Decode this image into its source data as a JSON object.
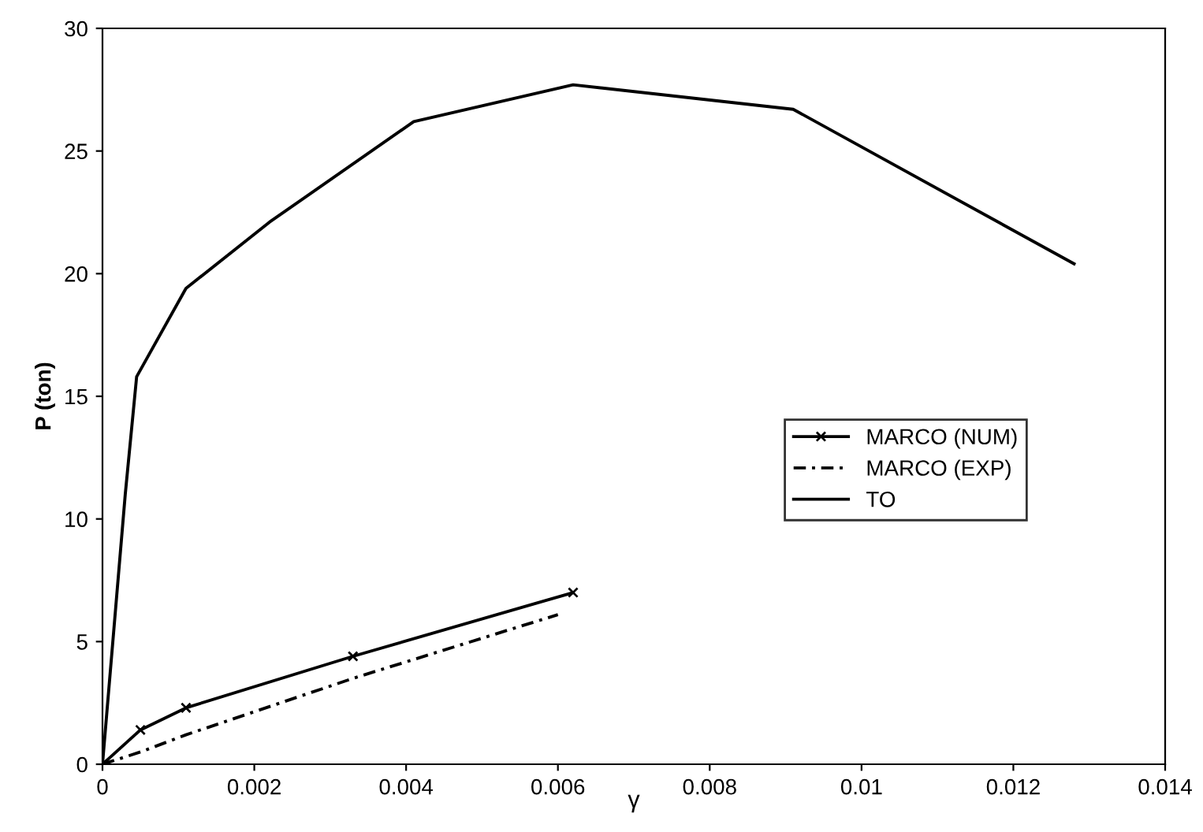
{
  "chart_data": {
    "type": "line",
    "xlabel": "γ",
    "ylabel": "P (ton)",
    "xlim": [
      0,
      0.014
    ],
    "ylim": [
      0,
      30
    ],
    "xticks": [
      0,
      0.002,
      0.004,
      0.006,
      0.008,
      {
        "value": 0.01,
        "label": "0.01"
      },
      0.012,
      0.014
    ],
    "yticks": [
      0,
      5,
      10,
      15,
      20,
      25,
      30
    ],
    "grid": false,
    "legend": "right",
    "series": [
      {
        "name": "MARCO (NUM)",
        "color": "#000000",
        "marker": "cross",
        "line_style": "solid",
        "x": [
          0,
          0.0005,
          0.0011,
          0.0033,
          0.0062
        ],
        "values": [
          0,
          1.4,
          2.3,
          4.4,
          7.0
        ]
      },
      {
        "name": "MARCO (EXP)",
        "color": "#000000",
        "marker": "none",
        "line_style": "dashed",
        "x": [
          0,
          0.0005,
          0.0011,
          0.0033,
          0.006
        ],
        "values": [
          0,
          0.5,
          1.2,
          3.5,
          6.1
        ]
      },
      {
        "name": "TO",
        "color": "#000000",
        "marker": "none",
        "line_style": "solid",
        "x": [
          0,
          0.0003,
          0.00045,
          0.0011,
          0.0022,
          0.0041,
          0.0062,
          0.0091,
          0.0128
        ],
        "values": [
          0,
          11,
          15.8,
          19.4,
          22.1,
          26.2,
          27.7,
          26.7,
          20.4
        ]
      }
    ]
  }
}
